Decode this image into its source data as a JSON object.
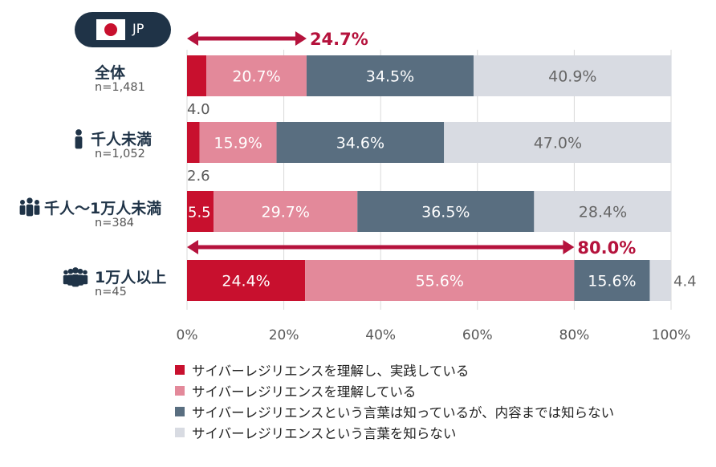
{
  "badge": {
    "country_code": "JP",
    "flag_icon": "japan-flag-icon"
  },
  "chart_data": {
    "type": "bar",
    "orientation": "horizontal",
    "stacked": true,
    "categories": [
      "全体",
      "千人未満",
      "千人〜1万人未満",
      "1万人以上"
    ],
    "sample_sizes": [
      "n=1,481",
      "n=1,052",
      "n=384",
      "n=45"
    ],
    "category_icons": [
      "",
      "person-icon",
      "group-icon",
      "large-group-icon"
    ],
    "series": [
      {
        "name": "サイバーレジリエンスを理解し、実践している",
        "color": "#c8102e",
        "values": [
          4.0,
          2.6,
          5.5,
          24.4
        ]
      },
      {
        "name": "サイバーレジリエンスを理解している",
        "color": "#e3899a",
        "values": [
          20.7,
          15.9,
          29.7,
          55.6
        ]
      },
      {
        "name": "サイバーレジリエンスという言葉は知っているが、内容までは知らない",
        "color": "#596e80",
        "values": [
          34.5,
          34.6,
          36.5,
          15.6
        ]
      },
      {
        "name": "サイバーレジリエンスという言葉を知らない",
        "color": "#d8dbe2",
        "values": [
          40.9,
          47.0,
          28.4,
          4.4
        ]
      }
    ],
    "value_labels": [
      [
        "4.0",
        "20.7%",
        "34.5%",
        "40.9%"
      ],
      [
        "2.6",
        "15.9%",
        "34.6%",
        "47.0%"
      ],
      [
        "5.5",
        "29.7%",
        "36.5%",
        "28.4%"
      ],
      [
        "24.4%",
        "55.6%",
        "15.6%",
        "4.4"
      ]
    ],
    "xlim": [
      0,
      100
    ],
    "x_ticks": [
      "0%",
      "20%",
      "40%",
      "60%",
      "80%",
      "100%"
    ],
    "grid": true,
    "legend_position": "bottom",
    "annotations": [
      {
        "category_index": 0,
        "value": 24.7,
        "label": "24.7%"
      },
      {
        "category_index": 3,
        "value": 80.0,
        "label": "80.0%"
      }
    ],
    "annotation_color": "#b5123c"
  }
}
